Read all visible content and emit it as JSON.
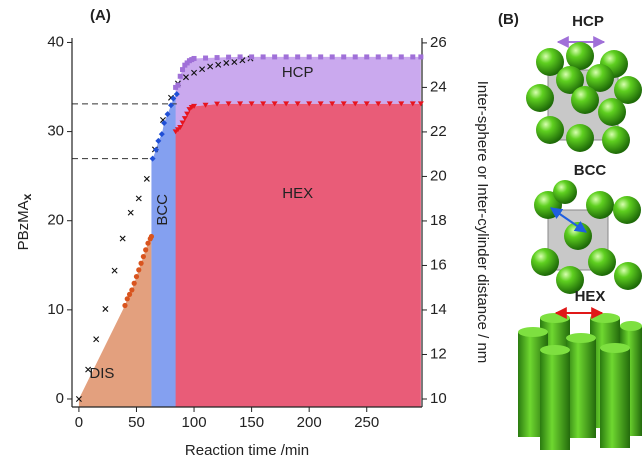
{
  "chart_data": {
    "type": "scatter",
    "panel_label": "(A)",
    "x_label": "Reaction time /min",
    "y_label": "PBzMA",
    "y_label_sub": "x",
    "y2_label": "Inter-sphere or Inter-cylinder distance / nm",
    "xlim": [
      -6,
      298
    ],
    "xticks": [
      0,
      50,
      100,
      150,
      200,
      250
    ],
    "ylim": [
      -0.9,
      40.5
    ],
    "yticks": [
      0,
      10,
      20,
      30,
      40
    ],
    "y2lim": [
      9.64,
      26.22
    ],
    "y2ticks": [
      10,
      12,
      14,
      16,
      18,
      20,
      22,
      24,
      26
    ],
    "regions": [
      "DIS",
      "BCC",
      "HEX",
      "HCP"
    ],
    "series": [
      {
        "marker": "x",
        "color": "#111111",
        "x": [
          0,
          8,
          15,
          23,
          31,
          38,
          45,
          52,
          59,
          66,
          73,
          80,
          86,
          93,
          100,
          107,
          114,
          121,
          128,
          135,
          142,
          149
        ],
        "values": [
          0,
          3.3,
          6.7,
          10.1,
          14.4,
          18,
          20.9,
          22.5,
          24.7,
          28,
          31.3,
          33.8,
          35.4,
          36.1,
          36.6,
          37,
          37.3,
          37.5,
          37.7,
          37.8,
          38,
          38.2
        ]
      },
      {
        "marker": "circle",
        "color": "#d9541e",
        "fill": "#e3a07e",
        "axis": "y2",
        "x": [
          40,
          42,
          44,
          46,
          48,
          50,
          52,
          54,
          56,
          58,
          60,
          62,
          63
        ],
        "values": [
          14.2,
          14.5,
          14.7,
          14.9,
          15.2,
          15.5,
          15.8,
          16.1,
          16.4,
          16.7,
          17.0,
          17.2,
          17.3
        ]
      },
      {
        "marker": "diamond",
        "color": "#1f4fd6",
        "fill": "#84a0f0",
        "axis": "y2",
        "x": [
          64,
          67,
          69,
          72,
          74,
          77,
          80,
          82,
          85
        ],
        "values": [
          20.8,
          21.2,
          21.6,
          21.9,
          22.4,
          22.8,
          23.2,
          23.5,
          23.7
        ]
      },
      {
        "marker": "triangle",
        "color": "#e8141e",
        "fill": "#e95c78",
        "axis": "y2",
        "x": [
          84,
          86,
          88,
          90,
          92,
          94,
          96,
          98,
          100,
          110,
          120,
          130,
          140,
          150,
          160,
          170,
          180,
          190,
          200,
          210,
          220,
          230,
          240,
          250,
          260,
          270,
          280,
          290,
          297
        ],
        "values": [
          22.0,
          22.1,
          22.2,
          22.4,
          22.6,
          22.8,
          23.0,
          23.1,
          23.15,
          23.2,
          23.25,
          23.26,
          23.26,
          23.26,
          23.26,
          23.26,
          23.26,
          23.26,
          23.26,
          23.26,
          23.26,
          23.26,
          23.26,
          23.26,
          23.26,
          23.26,
          23.26,
          23.26,
          23.26
        ]
      },
      {
        "marker": "square",
        "color": "#a070d8",
        "fill": "#caa9ee",
        "axis": "y2",
        "x": [
          84,
          86,
          88,
          90,
          92,
          94,
          96,
          98,
          100,
          110,
          120,
          130,
          140,
          150,
          160,
          170,
          180,
          190,
          200,
          210,
          220,
          230,
          240,
          250,
          260,
          270,
          280,
          290,
          297
        ],
        "values": [
          24.0,
          24.1,
          24.5,
          24.8,
          25.0,
          25.1,
          25.2,
          25.25,
          25.3,
          25.32,
          25.34,
          25.36,
          25.37,
          25.37,
          25.37,
          25.37,
          25.37,
          25.37,
          25.37,
          25.37,
          25.37,
          25.37,
          25.37,
          25.37,
          25.37,
          25.37,
          25.37,
          25.37,
          25.37
        ]
      }
    ]
  },
  "illustration": {
    "panel_label": "(B)",
    "structures": [
      "HCP",
      "BCC",
      "HEX"
    ]
  }
}
